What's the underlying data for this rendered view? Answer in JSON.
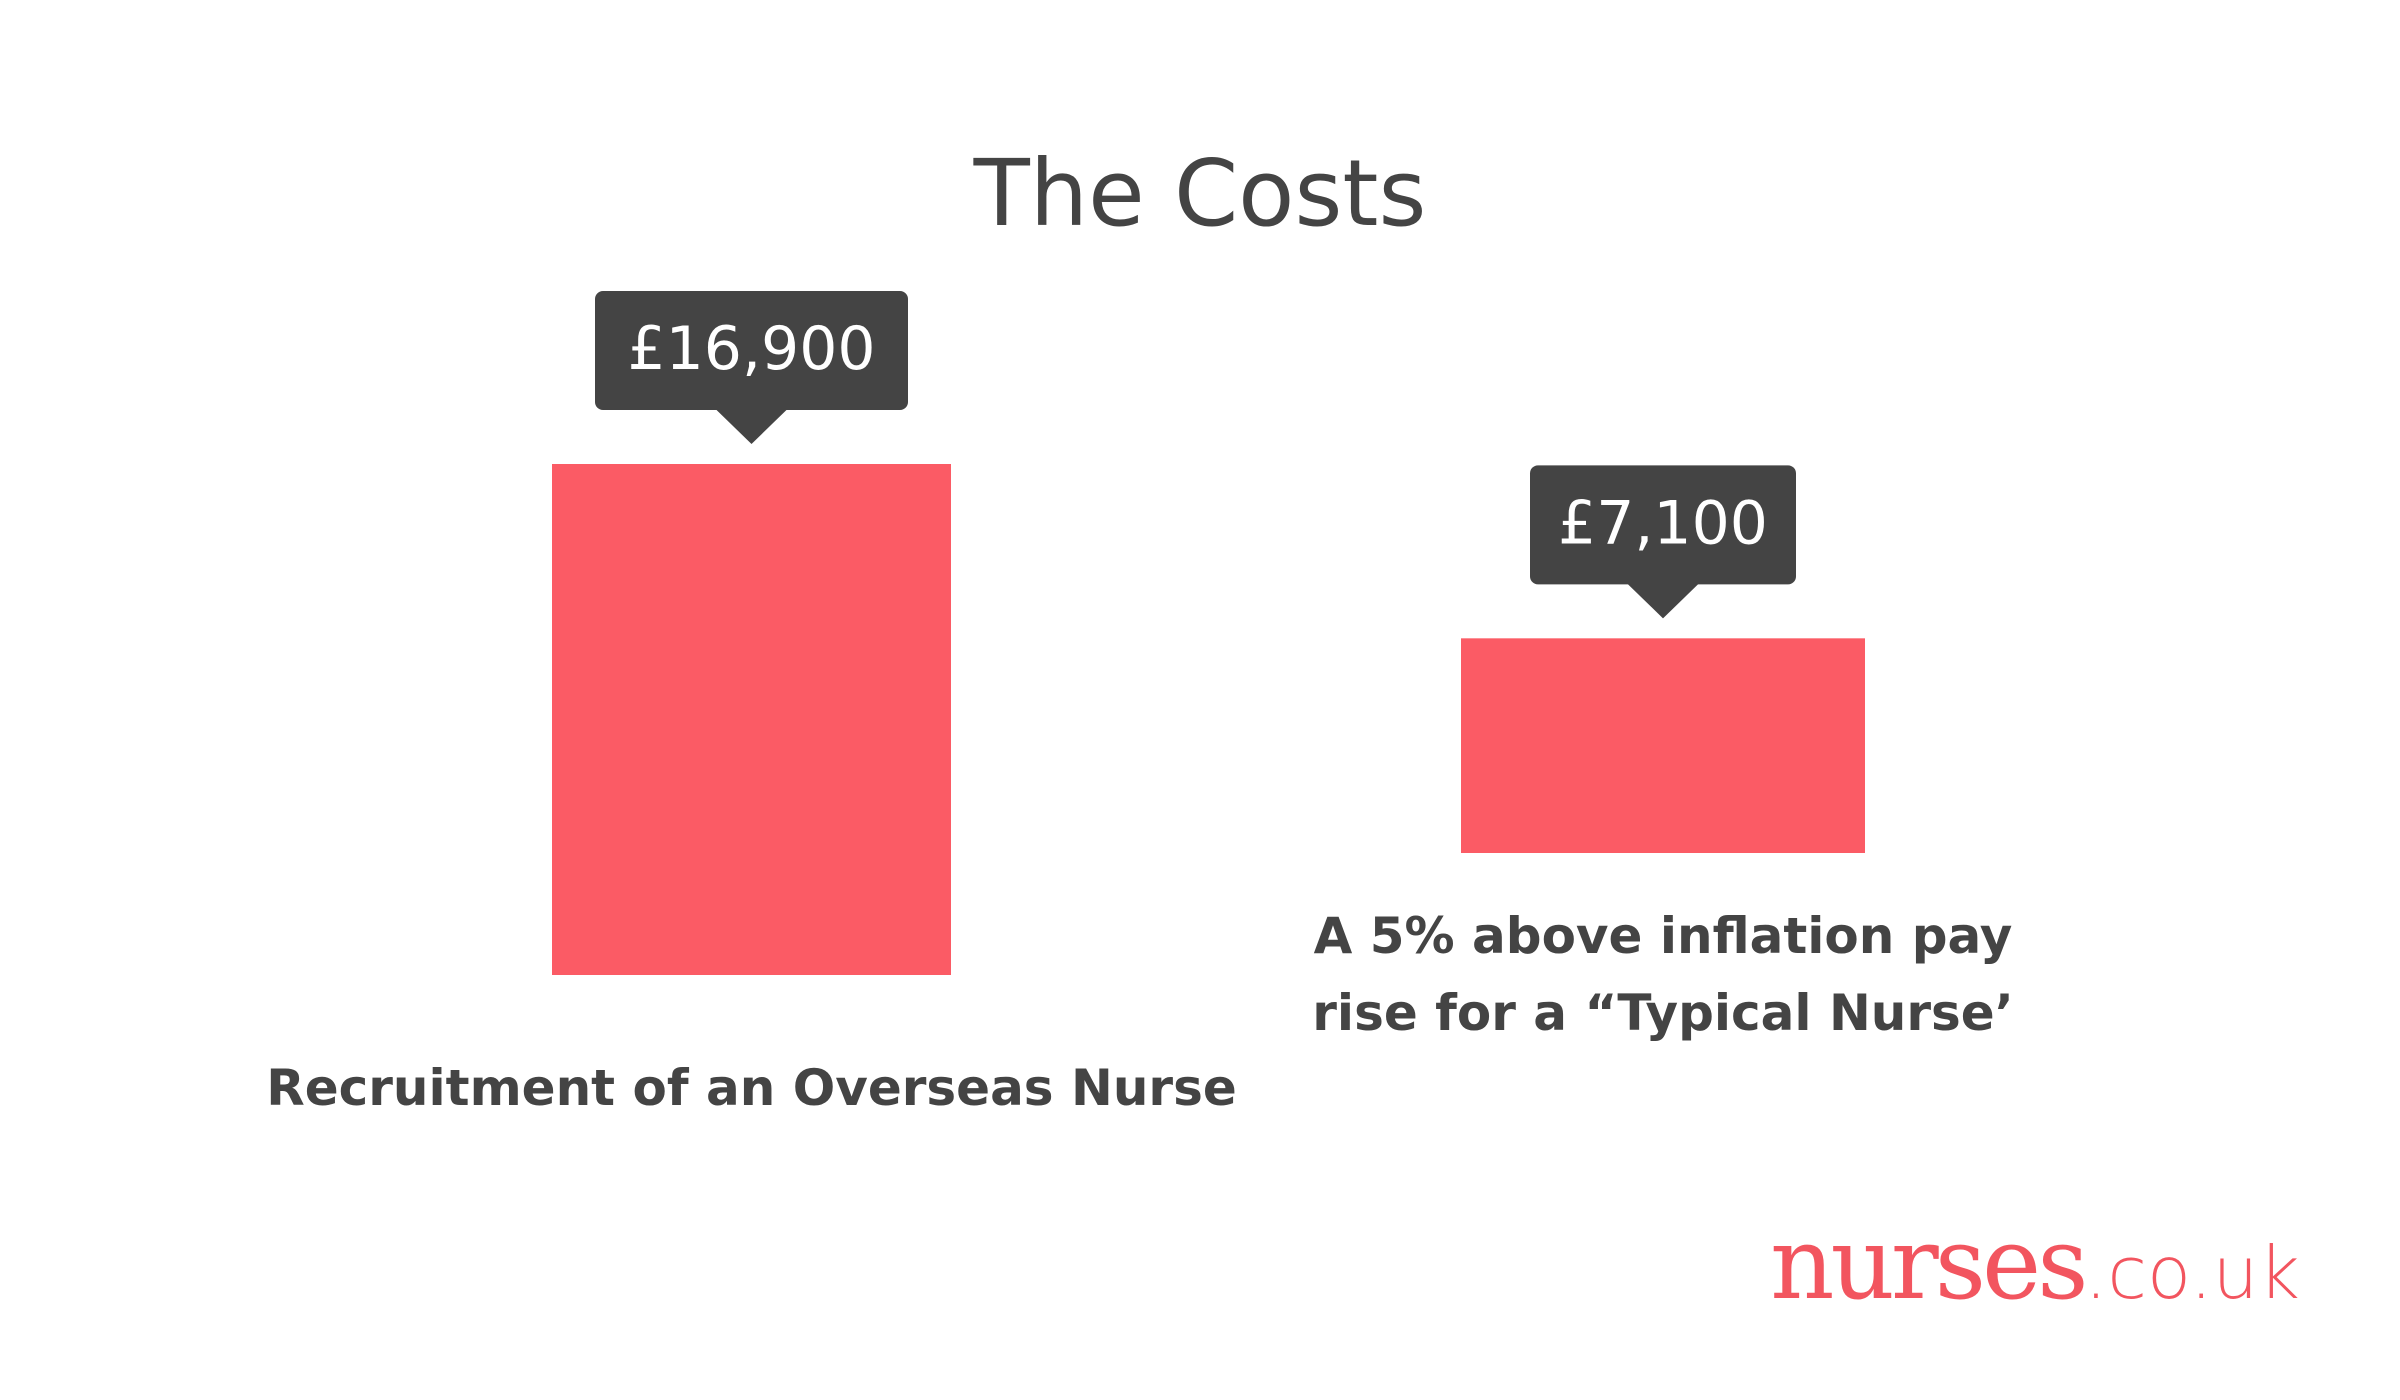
{
  "chart_data": {
    "type": "bar",
    "title": "The Costs",
    "categories": [
      "Recruitment of an Overseas Nurse",
      "A 5% above inflation pay rise for a “Typical Nurse’"
    ],
    "values": [
      16900,
      7100
    ],
    "value_labels": [
      "£16,900",
      "£7,100"
    ],
    "color": "#fb5b65"
  },
  "logo_name": "nurses",
  "logo_domain": ".co.uk"
}
